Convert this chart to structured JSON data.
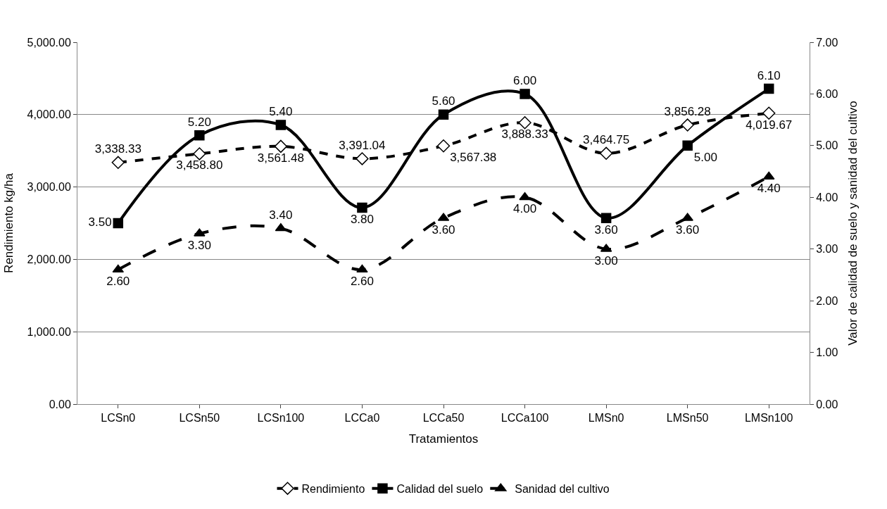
{
  "chart_data": {
    "type": "line",
    "xlabel": "Tratamientos",
    "ylabel": "Rendimiento kg/ha",
    "y2label": "Valor de calidad de suelo y sanidad del cultivo",
    "categories": [
      "LCSn0",
      "LCSn50",
      "LCSn100",
      "LCCa0",
      "LCCa50",
      "LCCa100",
      "LMSn0",
      "LMSn50",
      "LMSn100"
    ],
    "series": [
      {
        "name": "Rendimiento",
        "color": "#000000",
        "marker": "diamond",
        "line_style": "dashed",
        "values": [
          3338.33,
          3458.8,
          3561.48,
          3391.04,
          3567.38,
          3888.33,
          3464.75,
          3856.28,
          4019.67
        ],
        "value_labels": [
          "3,338.33",
          "3,458.80",
          "3,561.48",
          "3,391.04",
          "3,567.38",
          "3,888.33",
          "3,464.75",
          "3,856.28",
          "4,019.67"
        ]
      },
      {
        "name": "Calidad del suelo",
        "color": "#000000",
        "marker": "square",
        "line_style": "solid",
        "axis": "y2",
        "values": [
          3.5,
          5.2,
          5.4,
          3.8,
          5.6,
          6.0,
          3.6,
          5.0,
          6.1
        ],
        "value_labels": [
          "3.50",
          "5.20",
          "5.40",
          "3.80",
          "5.60",
          "6.00",
          "3.60",
          "5.00",
          "6.10"
        ]
      },
      {
        "name": "Sanidad del cultivo",
        "color": "#000000",
        "marker": "triangle",
        "line_style": "dashed",
        "axis": "y2",
        "values": [
          2.6,
          3.3,
          3.4,
          2.6,
          3.6,
          4.0,
          3.0,
          3.6,
          4.4
        ],
        "value_labels": [
          "2.60",
          "3.30",
          "3.40",
          "2.60",
          "3.60",
          "4.00",
          "3.00",
          "3.60",
          "4.40"
        ]
      }
    ],
    "ylim": [
      0,
      5000
    ],
    "yticks": [
      {
        "value": 0,
        "label": "0.00"
      },
      {
        "value": 1000,
        "label": "1,000.00"
      },
      {
        "value": 2000,
        "label": "2,000.00"
      },
      {
        "value": 3000,
        "label": "3,000.00"
      },
      {
        "value": 4000,
        "label": "4,000.00"
      },
      {
        "value": 5000,
        "label": "5,000.00"
      }
    ],
    "y2lim": [
      0,
      7
    ],
    "y2ticks": [
      {
        "value": 0,
        "label": "0.00"
      },
      {
        "value": 1,
        "label": "1.00"
      },
      {
        "value": 2,
        "label": "2.00"
      },
      {
        "value": 3,
        "label": "3.00"
      },
      {
        "value": 4,
        "label": "4.00"
      },
      {
        "value": 5,
        "label": "5.00"
      },
      {
        "value": 6,
        "label": "6.00"
      },
      {
        "value": 7,
        "label": "7.00"
      }
    ],
    "grid": "y",
    "legend": "bottom"
  }
}
